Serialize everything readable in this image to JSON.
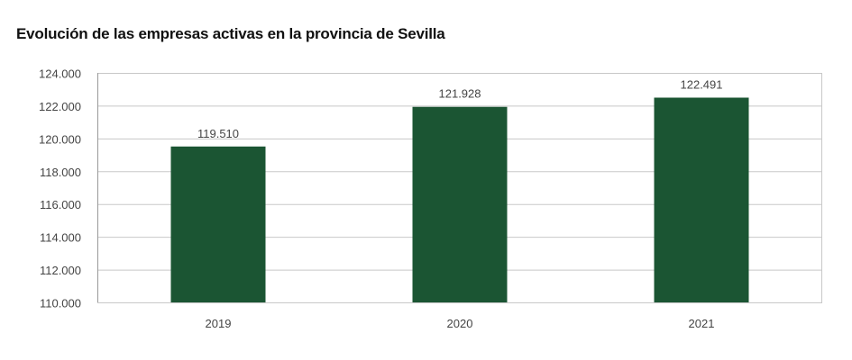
{
  "chart_data": {
    "type": "bar",
    "title": "Evolución de las empresas activas en la provincia de Sevilla",
    "categories": [
      "2019",
      "2020",
      "2021"
    ],
    "values": [
      119510,
      121928,
      122491
    ],
    "data_labels": [
      "119.510",
      "121.928",
      "122.491"
    ],
    "ylim": [
      110000,
      124000
    ],
    "yticks": [
      110000,
      112000,
      114000,
      116000,
      118000,
      120000,
      122000,
      124000
    ],
    "ytick_labels": [
      "110.000",
      "112.000",
      "114.000",
      "116.000",
      "118.000",
      "120.000",
      "122.000",
      "124.000"
    ],
    "grid": true,
    "bar_color": "#1b5533",
    "grid_color": "#c8c8c8"
  }
}
